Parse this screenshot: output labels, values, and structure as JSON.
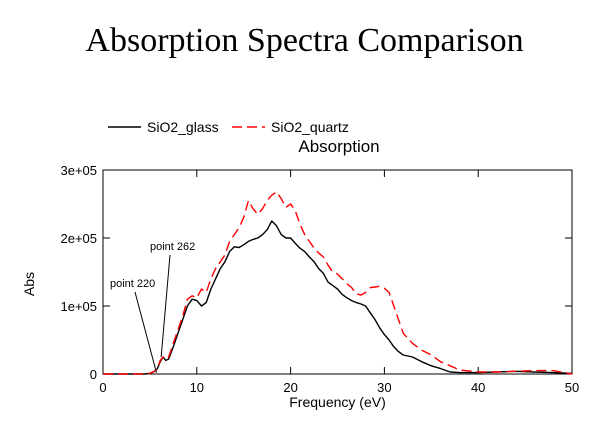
{
  "slide": {
    "title": "Absorption Spectra Comparison"
  },
  "chart_data": {
    "type": "line",
    "title": "Absorption",
    "xlabel": "Frequency (eV)",
    "ylabel": "Abs",
    "xlim": [
      0,
      50
    ],
    "ylim": [
      0,
      300000
    ],
    "xticks": [
      0,
      10,
      20,
      30,
      40,
      50
    ],
    "xtick_labels": [
      "0",
      "10",
      "20",
      "30",
      "40",
      "50"
    ],
    "yticks": [
      0,
      100000,
      200000,
      300000
    ],
    "ytick_labels": [
      "0",
      "1e+05",
      "2e+05",
      "3e+05"
    ],
    "grid": false,
    "legend": "top-left",
    "annotations": [
      {
        "text": "point 220",
        "x": 5.7,
        "y": 2000
      },
      {
        "text": "point 262",
        "x": 6.2,
        "y": 25000
      }
    ],
    "series": [
      {
        "name": "SiO2_glass",
        "color": "#000000",
        "dash": "solid",
        "x": [
          0,
          4.5,
          5.0,
          5.5,
          5.8,
          6.1,
          6.4,
          6.7,
          7.0,
          7.5,
          8.0,
          8.5,
          9.0,
          9.5,
          10.0,
          10.5,
          11.0,
          11.5,
          12.0,
          12.5,
          13.0,
          13.5,
          14.0,
          14.5,
          15.0,
          15.5,
          16.0,
          16.5,
          17.0,
          17.5,
          18.0,
          18.5,
          19.0,
          19.5,
          20.0,
          20.5,
          21.0,
          21.5,
          22.0,
          22.5,
          23.0,
          23.5,
          24.0,
          24.5,
          25.0,
          25.5,
          26.0,
          26.5,
          27.0,
          27.5,
          28.0,
          28.5,
          29.0,
          29.5,
          30.0,
          30.5,
          31.0,
          31.5,
          32.0,
          33.0,
          34.0,
          35.0,
          36.0,
          37.0,
          38.0,
          40.0,
          42.0,
          44.0,
          46.0,
          48.0,
          50.0
        ],
        "y": [
          0,
          0,
          1000,
          4000,
          8000,
          18000,
          25000,
          20000,
          22000,
          40000,
          60000,
          80000,
          100000,
          110000,
          108000,
          100000,
          105000,
          125000,
          140000,
          155000,
          165000,
          180000,
          187000,
          186000,
          190000,
          195000,
          198000,
          200000,
          205000,
          212000,
          225000,
          218000,
          205000,
          200000,
          200000,
          192000,
          185000,
          180000,
          172000,
          165000,
          155000,
          148000,
          135000,
          130000,
          125000,
          117000,
          112000,
          108000,
          105000,
          103000,
          100000,
          90000,
          80000,
          68000,
          58000,
          50000,
          40000,
          33000,
          28000,
          25000,
          18000,
          12000,
          8000,
          3000,
          2000,
          2000,
          3000,
          4000,
          3000,
          2000,
          1000
        ]
      },
      {
        "name": "SiO2_quartz",
        "color": "#ff0000",
        "dash": "dashed",
        "x": [
          0,
          4.5,
          5.0,
          5.5,
          5.8,
          6.1,
          6.4,
          6.7,
          7.0,
          7.5,
          8.0,
          8.5,
          9.0,
          9.5,
          10.0,
          10.5,
          11.0,
          11.5,
          12.0,
          12.5,
          13.0,
          13.5,
          14.0,
          14.5,
          15.0,
          15.5,
          16.0,
          16.5,
          17.0,
          17.5,
          18.0,
          18.5,
          19.0,
          19.5,
          20.0,
          20.5,
          21.0,
          21.5,
          22.0,
          22.5,
          23.0,
          23.5,
          24.0,
          24.5,
          25.0,
          25.5,
          26.0,
          26.5,
          27.0,
          27.5,
          28.0,
          28.5,
          29.0,
          29.5,
          30.0,
          30.5,
          31.0,
          31.5,
          32.0,
          33.0,
          34.0,
          35.0,
          36.0,
          37.0,
          38.0,
          40.0,
          42.0,
          44.0,
          46.0,
          48.0,
          50.0
        ],
        "y": [
          0,
          0,
          1000,
          4000,
          8000,
          20000,
          25000,
          22000,
          25000,
          45000,
          65000,
          85000,
          110000,
          115000,
          112000,
          125000,
          120000,
          140000,
          155000,
          165000,
          175000,
          195000,
          205000,
          215000,
          230000,
          255000,
          243000,
          235000,
          243000,
          255000,
          263000,
          268000,
          258000,
          245000,
          250000,
          240000,
          220000,
          205000,
          195000,
          185000,
          178000,
          172000,
          160000,
          150000,
          147000,
          140000,
          133000,
          127000,
          118000,
          116000,
          120000,
          127000,
          128000,
          129000,
          126000,
          120000,
          100000,
          80000,
          60000,
          45000,
          35000,
          28000,
          18000,
          12000,
          6000,
          3000,
          3000,
          4000,
          5000,
          5000,
          0
        ]
      }
    ]
  }
}
